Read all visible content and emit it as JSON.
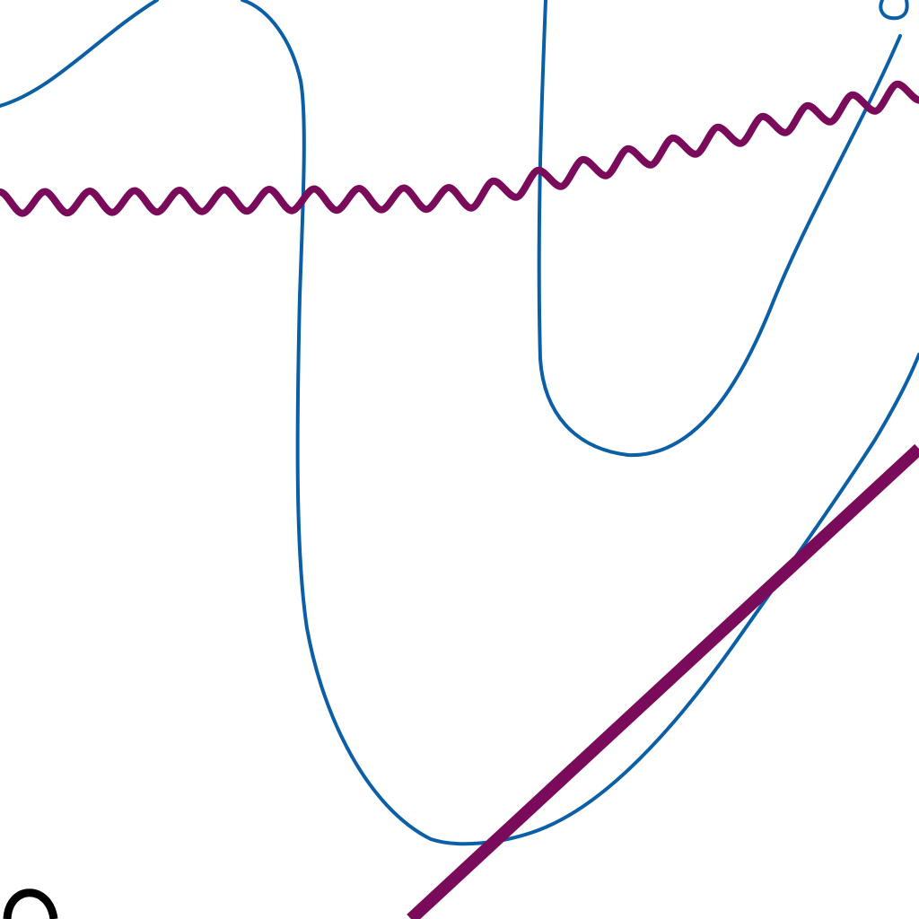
{
  "map": {
    "style": {
      "background": "#ffffff",
      "contour_color": "#0a5fa6",
      "boundary_color": "#7a0a5a",
      "symbol_color": "#000000"
    },
    "features": {
      "contour_lines": {
        "type": "contour",
        "count": 2
      },
      "wavy_line": {
        "type": "boundary",
        "pattern": "zigzag"
      },
      "diagonal_line": {
        "type": "thick-line"
      },
      "corner_symbol": {
        "type": "arc-symbol"
      }
    }
  }
}
